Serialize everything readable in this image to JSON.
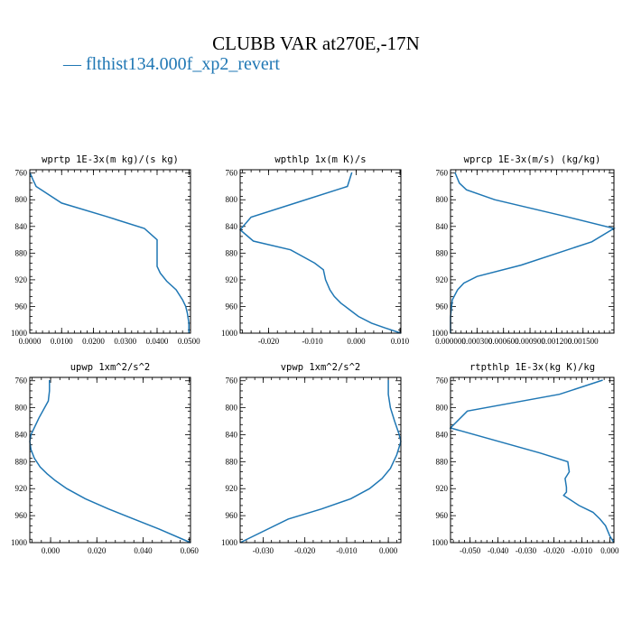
{
  "figure": {
    "title": "CLUBB VAR at270E,-17N",
    "legend_label": "flthist134.000f_xp2_revert",
    "legend_marker": "—",
    "series_color": "#1f77b4"
  },
  "chart_data": [
    {
      "type": "line",
      "title": "wprtp  1E-3x(m kg)/(s kg)",
      "xlim": [
        0.0,
        0.0505
      ],
      "ylim": [
        1000,
        755
      ],
      "xticks": [
        0.0,
        0.01,
        0.02,
        0.03,
        0.04,
        0.05
      ],
      "xtick_labels": [
        "0.0000",
        "0.0100",
        "0.0200",
        "0.0300",
        "0.0400",
        "0.0500"
      ],
      "yticks": [
        760,
        800,
        840,
        880,
        920,
        960,
        1000
      ],
      "x": [
        0.0,
        0.001,
        0.002,
        0.01,
        0.024,
        0.036,
        0.04,
        0.04,
        0.04,
        0.041,
        0.043,
        0.046,
        0.048,
        0.049,
        0.0495,
        0.05,
        0.05
      ],
      "y": [
        759,
        770,
        780,
        805,
        825,
        843,
        860,
        878,
        900,
        910,
        922,
        935,
        950,
        960,
        970,
        985,
        1000
      ]
    },
    {
      "type": "line",
      "title": "wpthlp  1x(m K)/s",
      "xlim": [
        -0.0265,
        0.0102
      ],
      "ylim": [
        1000,
        755
      ],
      "xticks": [
        -0.02,
        -0.01,
        0.0,
        0.01
      ],
      "xtick_labels": [
        "-0.020",
        "-0.010",
        "0.000",
        "0.010"
      ],
      "yticks": [
        760,
        800,
        840,
        880,
        920,
        960,
        1000
      ],
      "x": [
        -0.001,
        -0.002,
        -0.013,
        -0.024,
        -0.0265,
        -0.0235,
        -0.015,
        -0.0095,
        -0.0075,
        -0.007,
        -0.006,
        -0.005,
        -0.0035,
        -0.0015,
        0.0005,
        0.0035,
        0.0065,
        0.0102
      ],
      "y": [
        759,
        780,
        803,
        826,
        845,
        862,
        875,
        895,
        905,
        920,
        935,
        945,
        955,
        965,
        975,
        985,
        992,
        1000
      ]
    },
    {
      "type": "line",
      "title": "wprcp  1E-3x(m/s) (kg/kg)",
      "xlim": [
        0.0,
        0.00185
      ],
      "ylim": [
        1000,
        755
      ],
      "xticks": [
        0.0,
        0.0003,
        0.0006,
        0.0009,
        0.0012,
        0.0015
      ],
      "xtick_labels": [
        "0.000000",
        "0.000300",
        "0.000600",
        "0.000900",
        "0.001200",
        "0.001500"
      ],
      "yticks": [
        760,
        800,
        840,
        880,
        920,
        960,
        1000
      ],
      "x": [
        5e-05,
        0.0001,
        0.00018,
        0.0005,
        0.0013,
        0.00185,
        0.0016,
        0.0008,
        0.0003,
        0.00015,
        8e-05,
        2e-05,
        0.0,
        0.0
      ],
      "y": [
        759,
        775,
        785,
        800,
        825,
        843,
        863,
        898,
        915,
        925,
        935,
        950,
        975,
        1000
      ]
    },
    {
      "type": "line",
      "title": "upwp  1xm^2/s^2",
      "xlim": [
        -0.009,
        0.0605
      ],
      "ylim": [
        1000,
        755
      ],
      "xticks": [
        0.0,
        0.02,
        0.04,
        0.06
      ],
      "xtick_labels": [
        "0.000",
        "0.020",
        "0.040",
        "0.060"
      ],
      "yticks": [
        760,
        800,
        840,
        880,
        920,
        960,
        1000
      ],
      "x": [
        -0.0005,
        -0.0005,
        -0.001,
        -0.005,
        -0.0085,
        -0.009,
        -0.0085,
        -0.007,
        -0.0045,
        -0.0015,
        0.002,
        0.007,
        0.015,
        0.025,
        0.036,
        0.047,
        0.0605
      ],
      "y": [
        759,
        775,
        790,
        815,
        840,
        850,
        862,
        875,
        888,
        898,
        908,
        920,
        935,
        950,
        965,
        980,
        1000
      ]
    },
    {
      "type": "line",
      "title": "vpwp  1xm^2/s^2",
      "xlim": [
        -0.0355,
        0.003
      ],
      "ylim": [
        1000,
        755
      ],
      "xticks": [
        -0.03,
        -0.02,
        -0.01,
        0.0
      ],
      "xtick_labels": [
        "-0.030",
        "-0.020",
        "-0.010",
        "0.000"
      ],
      "yticks": [
        760,
        800,
        840,
        880,
        920,
        960,
        1000
      ],
      "x": [
        0.0,
        0.0,
        0.0005,
        0.0015,
        0.0025,
        0.003,
        0.002,
        0.0005,
        -0.0015,
        -0.0045,
        -0.009,
        -0.016,
        -0.024,
        -0.0355
      ],
      "y": [
        759,
        780,
        800,
        820,
        838,
        850,
        870,
        890,
        905,
        920,
        935,
        950,
        965,
        1000
      ]
    },
    {
      "type": "line",
      "title": "rtpthlp  1E-3x(kg K)/kg",
      "xlim": [
        -0.057,
        0.0015
      ],
      "ylim": [
        1000,
        755
      ],
      "xticks": [
        -0.05,
        -0.04,
        -0.03,
        -0.02,
        -0.01,
        0.0
      ],
      "xtick_labels": [
        "-0.050",
        "-0.040",
        "-0.030",
        "-0.020",
        "-0.010",
        "0.000"
      ],
      "yticks": [
        760,
        800,
        840,
        880,
        920,
        960,
        1000
      ],
      "x": [
        -0.0025,
        -0.018,
        -0.051,
        -0.057,
        -0.025,
        -0.015,
        -0.0145,
        -0.016,
        -0.0155,
        -0.0155,
        -0.0165,
        -0.011,
        -0.006,
        -0.0035,
        -0.0015,
        0.0,
        0.0015
      ],
      "y": [
        759,
        780,
        805,
        830,
        867,
        880,
        895,
        905,
        918,
        925,
        930,
        945,
        955,
        965,
        975,
        990,
        1000
      ]
    }
  ]
}
